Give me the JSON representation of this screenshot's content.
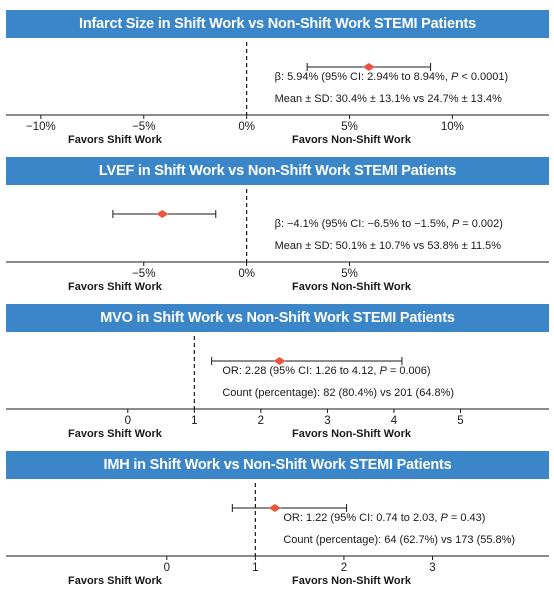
{
  "chart_data": [
    {
      "type": "forest",
      "title": "Infarct Size in Shift Work vs Non-Shift Work STEMI Patients",
      "point": 5.94,
      "ci": [
        2.94,
        8.94
      ],
      "null_value": 0,
      "xlim": [
        -11.5,
        14.5
      ],
      "ticks": [
        -10,
        -5,
        0,
        5,
        10
      ],
      "tick_labels": [
        "−10%",
        "−5%",
        "0%",
        "5%",
        "10%"
      ],
      "stat_segments": [
        {
          "t": "β: 5.94% (95% CI: 2.94% to 8.94%, "
        },
        {
          "t": "P",
          "italic": true
        },
        {
          "t": " < 0.0001)"
        }
      ],
      "summary_line": "Mean ± SD: 30.4% ± 13.1% vs 24.7% ± 13.4%",
      "favors_left": "Favors Shift Work",
      "favors_right": "Favors Non-Shift Work"
    },
    {
      "type": "forest",
      "title": "LVEF in Shift Work vs Non-Shift Work STEMI Patients",
      "point": -4.1,
      "ci": [
        -6.5,
        -1.5
      ],
      "null_value": 0,
      "xlim": [
        -11.5,
        14.5
      ],
      "ticks": [
        -5,
        0,
        5
      ],
      "tick_labels": [
        "−5%",
        "0%",
        "5%"
      ],
      "stat_segments": [
        {
          "t": "β: −4.1% (95% CI: −6.5% to −1.5%, "
        },
        {
          "t": "P",
          "italic": true
        },
        {
          "t": " = 0.002)"
        }
      ],
      "summary_line": "Mean ± SD: 50.1% ± 10.7% vs 53.8% ± 11.5%",
      "favors_left": "Favors Shift Work",
      "favors_right": "Favors Non-Shift Work"
    },
    {
      "type": "forest",
      "title": "MVO in Shift Work vs Non-Shift Work STEMI Patients",
      "point": 2.28,
      "ci": [
        1.26,
        4.12
      ],
      "null_value": 1,
      "xlim": [
        -1.77,
        6.27
      ],
      "ticks": [
        0,
        1,
        2,
        3,
        4,
        5
      ],
      "tick_labels": [
        "0",
        "1",
        "2",
        "3",
        "4",
        "5"
      ],
      "stat_segments": [
        {
          "t": "OR: 2.28 (95% CI: 1.26 to 4.12, "
        },
        {
          "t": "P",
          "italic": true
        },
        {
          "t": " = 0.006)"
        }
      ],
      "summary_line": "Count (percentage): 82 (80.4%) vs 201 (64.8%)",
      "favors_left": "Favors Shift Work",
      "favors_right": "Favors Non-Shift Work"
    },
    {
      "type": "forest",
      "title": "IMH in Shift Work vs Non-Shift Work STEMI Patients",
      "point": 1.22,
      "ci": [
        0.74,
        2.03
      ],
      "null_value": 1,
      "xlim": [
        -1.77,
        4.27
      ],
      "ticks": [
        0,
        1,
        2,
        3
      ],
      "tick_labels": [
        "0",
        "1",
        "2",
        "3"
      ],
      "stat_segments": [
        {
          "t": "OR: 1.22 (95% CI: 0.74 to 2.03, "
        },
        {
          "t": "P",
          "italic": true
        },
        {
          "t": " = 0.43)"
        }
      ],
      "summary_line": "Count (percentage): 64 (62.7%) vs 173 (55.8%)",
      "favors_left": "Favors Shift Work",
      "favors_right": "Favors Non-Shift Work"
    }
  ],
  "colors": {
    "header_bg": "#3a86c8",
    "header_text": "#ffffff",
    "marker": "#e8543c",
    "line": "#1a1a1a"
  }
}
